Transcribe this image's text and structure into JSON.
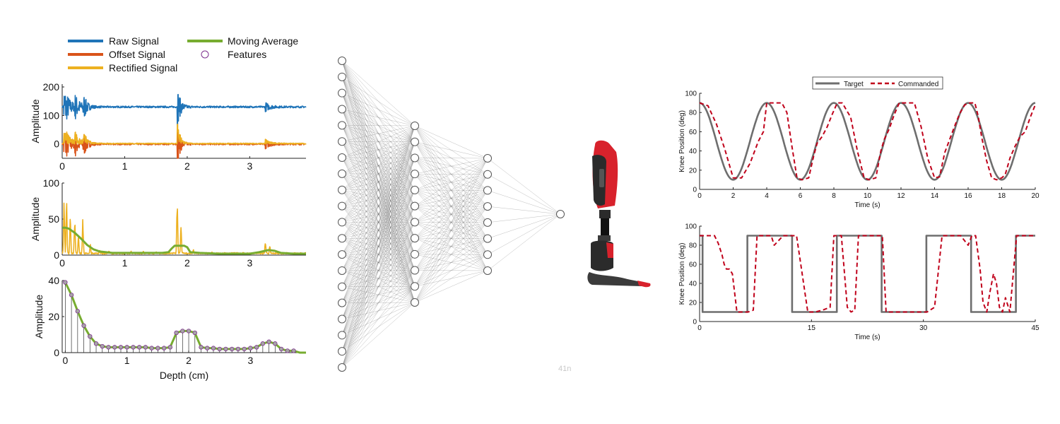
{
  "colors": {
    "raw": "#1f74b8",
    "offset": "#d95319",
    "rectified": "#edb120",
    "moving_average": "#77ac30",
    "features": "#7e2f8e",
    "target": "#6e6e6e",
    "commanded": "#c0001a",
    "prosthesis_red": "#d8222c",
    "prosthesis_dark": "#2b2b2b"
  },
  "legend_left": {
    "raw": "Raw  Signal",
    "offset": "Offset Signal",
    "rectified": "Rectified Signal",
    "moving_average": "Moving Average",
    "features": "Features"
  },
  "network": {
    "layer_sizes": [
      20,
      12,
      8,
      1
    ],
    "watermark": "41n"
  },
  "prosthesis": {
    "icon": "prosthetic-leg-icon"
  },
  "chart_data": [
    {
      "id": "raw-offset",
      "type": "line",
      "title": "",
      "xlabel": "",
      "ylabel": "Amplitude",
      "xlim": [
        0,
        3.9
      ],
      "ylim": [
        -50,
        210
      ],
      "xticks": [
        "0",
        "1",
        "2",
        "3"
      ],
      "yticks": [
        "0",
        "100",
        "200"
      ],
      "grid": false,
      "bursts": [
        {
          "t": 0.02,
          "amp": 80,
          "decay": 0.09
        },
        {
          "t": 0.2,
          "amp": 40,
          "decay": 0.08
        },
        {
          "t": 0.33,
          "amp": 50,
          "decay": 0.05
        },
        {
          "t": 1.84,
          "amp": 75,
          "decay": 0.05
        },
        {
          "t": 3.25,
          "amp": 15,
          "decay": 0.08
        }
      ],
      "series": [
        {
          "name": "Raw  Signal",
          "baseline": 130
        },
        {
          "name": "Offset Signal",
          "baseline": 0
        },
        {
          "name": "Rectified Signal",
          "baseline": 0
        }
      ]
    },
    {
      "id": "rectified-moving-average",
      "type": "line",
      "title": "",
      "xlabel": "",
      "ylabel": "Amplitude",
      "xlim": [
        0,
        3.9
      ],
      "ylim": [
        0,
        100
      ],
      "xticks": [
        "0",
        "1",
        "2",
        "3"
      ],
      "yticks": [
        "0",
        "50",
        "100"
      ],
      "grid": false,
      "series": [
        {
          "name": "Rectified Signal",
          "peaks": [
            {
              "t": 0.03,
              "amp": 78
            },
            {
              "t": 0.07,
              "amp": 75
            },
            {
              "t": 0.13,
              "amp": 52
            },
            {
              "t": 0.2,
              "amp": 55
            },
            {
              "t": 0.26,
              "amp": 28
            },
            {
              "t": 0.33,
              "amp": 50
            },
            {
              "t": 0.45,
              "amp": 15
            },
            {
              "t": 0.6,
              "amp": 8
            },
            {
              "t": 0.75,
              "amp": 7
            },
            {
              "t": 1.1,
              "amp": 6
            },
            {
              "t": 1.3,
              "amp": 6
            },
            {
              "t": 1.5,
              "amp": 5
            },
            {
              "t": 1.84,
              "amp": 78
            },
            {
              "t": 1.9,
              "amp": 40
            },
            {
              "t": 2.1,
              "amp": 8
            },
            {
              "t": 2.4,
              "amp": 5
            },
            {
              "t": 2.8,
              "amp": 4
            },
            {
              "t": 3.25,
              "amp": 20
            },
            {
              "t": 3.32,
              "amp": 15
            },
            {
              "t": 3.6,
              "amp": 4
            }
          ]
        },
        {
          "name": "Moving Average",
          "x": [
            0,
            0.05,
            0.1,
            0.15,
            0.2,
            0.3,
            0.4,
            0.5,
            0.6,
            0.8,
            1.0,
            1.2,
            1.4,
            1.6,
            1.7,
            1.75,
            1.8,
            1.95,
            2.0,
            2.05,
            2.2,
            2.5,
            3.0,
            3.15,
            3.3,
            3.4,
            3.5,
            3.7,
            3.9
          ],
          "y": [
            38,
            38,
            37,
            34,
            31,
            23,
            14,
            8,
            5,
            3,
            3,
            3,
            3,
            3,
            4,
            9,
            13,
            13,
            11,
            4,
            3,
            2,
            2,
            4,
            7,
            6,
            3,
            2,
            2
          ]
        }
      ]
    },
    {
      "id": "features",
      "type": "line",
      "title": "",
      "xlabel": "Depth (cm)",
      "ylabel": "Amplitude",
      "xlim": [
        -0.05,
        3.9
      ],
      "ylim": [
        0,
        40
      ],
      "xticks": [
        "0",
        "1",
        "2",
        "3"
      ],
      "yticks": [
        "0",
        "20",
        "40"
      ],
      "grid": false,
      "series": [
        {
          "name": "Moving Average",
          "x": [
            0,
            0.1,
            0.2,
            0.3,
            0.4,
            0.5,
            0.6,
            0.7,
            0.8,
            0.9,
            1.0,
            1.1,
            1.2,
            1.3,
            1.4,
            1.5,
            1.6,
            1.7,
            1.8,
            1.9,
            2.0,
            2.1,
            2.2,
            2.3,
            2.4,
            2.5,
            2.6,
            2.7,
            2.8,
            2.9,
            3.0,
            3.1,
            3.2,
            3.3,
            3.4,
            3.5,
            3.6,
            3.7,
            3.8,
            3.9
          ],
          "y": [
            39,
            32,
            23,
            15,
            9,
            5,
            3.5,
            3,
            3,
            3,
            3,
            3,
            3,
            3,
            2.5,
            2.5,
            2.5,
            3,
            11,
            12,
            12,
            11,
            3,
            2.5,
            2.5,
            2,
            2,
            2,
            2,
            2,
            2.5,
            3,
            5,
            6,
            5,
            2,
            1,
            1,
            0,
            0
          ]
        },
        {
          "name": "Features",
          "step": 0.1,
          "start": 0,
          "end": 3.7
        }
      ]
    },
    {
      "id": "sine-tracking",
      "type": "line",
      "title": "",
      "xlabel": "Time (s)",
      "ylabel": "Knee Position (deg)",
      "xlim": [
        0,
        20
      ],
      "ylim": [
        0,
        100
      ],
      "xticks": [
        "0",
        "2",
        "4",
        "6",
        "8",
        "10",
        "12",
        "14",
        "16",
        "18",
        "20"
      ],
      "yticks": [
        "0",
        "20",
        "40",
        "60",
        "80",
        "100"
      ],
      "grid": false,
      "legend": "top-center",
      "series": [
        {
          "name": "Target",
          "center": 50,
          "amplitude": 40,
          "period": 4
        },
        {
          "name": "Commanded",
          "x": [
            0,
            0.5,
            1,
            1.5,
            2,
            2.5,
            3,
            3.5,
            3.8,
            4.0,
            4.3,
            4.6,
            4.9,
            5.2,
            5.5,
            5.8,
            6.1,
            6.5,
            6.8,
            7.0,
            7.3,
            7.6,
            7.9,
            8.2,
            8.5,
            9.0,
            9.4,
            9.8,
            10.1,
            10.5,
            10.8,
            11.0,
            11.3,
            11.6,
            11.9,
            12.2,
            12.5,
            12.8,
            13.2,
            13.6,
            14.0,
            14.3,
            14.6,
            14.9,
            15.2,
            15.5,
            15.8,
            16.1,
            16.4,
            16.6,
            16.8,
            17.1,
            17.4,
            17.7,
            18.0,
            18.2,
            18.5,
            18.8,
            19.1,
            19.4,
            19.7,
            20.0
          ],
          "y": [
            90,
            87,
            68,
            42,
            12,
            12,
            27,
            50,
            60,
            90,
            90,
            90,
            90,
            80,
            45,
            12,
            10,
            12,
            35,
            48,
            55,
            65,
            78,
            90,
            90,
            75,
            40,
            12,
            10,
            12,
            40,
            52,
            63,
            78,
            90,
            90,
            90,
            90,
            65,
            32,
            12,
            13,
            38,
            52,
            66,
            79,
            88,
            90,
            90,
            76,
            55,
            30,
            12,
            10,
            12,
            15,
            33,
            45,
            55,
            60,
            75,
            88
          ]
        }
      ]
    },
    {
      "id": "step-tracking",
      "type": "line",
      "title": "",
      "xlabel": "Time (s)",
      "ylabel": "Knee Position (deg)",
      "xlim": [
        0,
        45
      ],
      "ylim": [
        0,
        100
      ],
      "xticks": [
        "0",
        "15",
        "30",
        "45"
      ],
      "yticks": [
        "0",
        "20",
        "40",
        "60",
        "80",
        "100"
      ],
      "grid": false,
      "series": [
        {
          "name": "Target",
          "x": [
            0,
            0.4,
            0.4,
            6.4,
            6.4,
            12.4,
            12.4,
            18.4,
            18.4,
            24.4,
            24.4,
            30.4,
            30.4,
            36.4,
            36.4,
            42.4,
            42.4,
            45
          ],
          "y": [
            90,
            90,
            10,
            10,
            90,
            90,
            10,
            10,
            90,
            90,
            10,
            10,
            90,
            90,
            10,
            10,
            90,
            90
          ]
        },
        {
          "name": "Commanded",
          "x": [
            0,
            2.0,
            2.5,
            3.0,
            3.3,
            3.6,
            4.0,
            4.4,
            5.0,
            6.5,
            7.2,
            7.7,
            8.2,
            9.0,
            9.6,
            10.0,
            10.6,
            11.2,
            12.0,
            13.0,
            14.5,
            15.5,
            16.5,
            17.5,
            18.0,
            19.0,
            19.8,
            20.3,
            20.8,
            21.3,
            22.5,
            24.5,
            25.0,
            26.0,
            27.5,
            29.0,
            30.5,
            31.5,
            32.5,
            33.5,
            34.5,
            35.0,
            35.5,
            36.0,
            36.5,
            37.0,
            37.6,
            38.0,
            38.5,
            38.9,
            39.4,
            39.8,
            40.2,
            40.6,
            41.0,
            41.6,
            42.5,
            43.0,
            45
          ],
          "y": [
            90,
            90,
            82,
            70,
            60,
            55,
            55,
            50,
            10,
            10,
            12,
            90,
            90,
            90,
            90,
            80,
            85,
            90,
            90,
            90,
            10,
            10,
            12,
            15,
            90,
            90,
            15,
            10,
            12,
            90,
            90,
            90,
            10,
            10,
            10,
            10,
            10,
            15,
            90,
            90,
            90,
            90,
            85,
            80,
            90,
            90,
            55,
            20,
            10,
            30,
            50,
            40,
            15,
            10,
            25,
            10,
            90,
            90,
            90
          ]
        }
      ]
    }
  ]
}
